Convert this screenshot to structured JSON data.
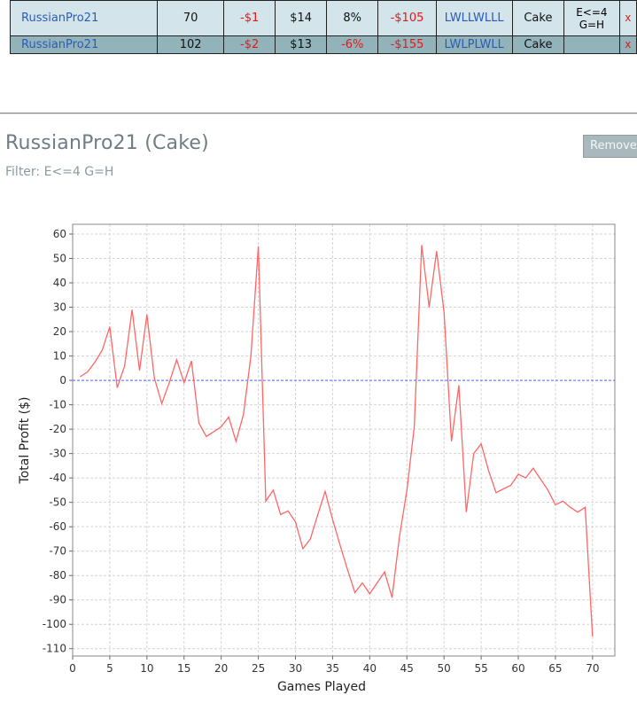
{
  "table": {
    "rows": [
      {
        "player": "RussianPro21",
        "games": "70",
        "profit": "-$1",
        "buyin": "$14",
        "roi": "8%",
        "total": "-$105",
        "streak": "LWLLWLLL",
        "site": "Cake",
        "filter_line1": "E<=4",
        "filter_line2": "G=H",
        "action": "x"
      },
      {
        "player": "RussianPro21",
        "games": "102",
        "profit": "-$2",
        "buyin": "$13",
        "roi": "-6%",
        "total": "-$155",
        "streak": "LWLPLWLL",
        "site": "Cake",
        "filter_line1": "",
        "filter_line2": "",
        "action": "x"
      }
    ]
  },
  "panel": {
    "title": "RussianPro21 (Cake)",
    "filter": "Filter: E<=4 G=H",
    "remove_label": "Remove"
  },
  "chart_data": {
    "type": "line",
    "xlabel": "Games Played",
    "ylabel": "Total Profit ($)",
    "xlim": [
      0,
      73
    ],
    "ylim": [
      -113,
      64
    ],
    "xticks": [
      0,
      5,
      10,
      15,
      20,
      25,
      30,
      35,
      40,
      45,
      50,
      55,
      60,
      65,
      70
    ],
    "yticks": [
      60,
      50,
      40,
      30,
      20,
      10,
      0,
      -10,
      -20,
      -30,
      -40,
      -50,
      -60,
      -70,
      -80,
      -90,
      -100,
      -110
    ],
    "grid": true,
    "baseline": 0,
    "line_color": "#ff6666",
    "baseline_color": "#5566ff",
    "series": [
      {
        "x": [
          1,
          2,
          3,
          4,
          5,
          6,
          7,
          8,
          9,
          10,
          11,
          12,
          13,
          14,
          15,
          16,
          17,
          18,
          19,
          20,
          21,
          22,
          23,
          24,
          25,
          26,
          27,
          28,
          29,
          30,
          31,
          32,
          33,
          34,
          35,
          36,
          37,
          38,
          39,
          40,
          41,
          42,
          43,
          44,
          45,
          46,
          47,
          48,
          49,
          50,
          51,
          52,
          53,
          54,
          55,
          56,
          57,
          58,
          59,
          60,
          61,
          62,
          63,
          64,
          65,
          66,
          67,
          68,
          69,
          70
        ],
        "y": [
          1.5,
          3.5,
          7.5,
          12.5,
          22,
          -3,
          6,
          29,
          4,
          27,
          1,
          -9.5,
          -1,
          8.5,
          -1,
          8,
          -17.5,
          -23,
          -21,
          -19,
          -15,
          -25,
          -14,
          10,
          55,
          -49.5,
          -45,
          -55,
          -53.5,
          -58,
          -69,
          -65,
          -55,
          -45.5,
          -57,
          -67.5,
          -77.5,
          -87,
          -83,
          -87.5,
          -83,
          -78.5,
          -89,
          -64,
          -45,
          -19,
          55.5,
          30,
          53,
          28,
          -25,
          -2,
          -54,
          -30,
          -26,
          -37,
          -46,
          -44.5,
          -43,
          -38.5,
          -40,
          -36,
          -40.5,
          -45,
          -51,
          -49.5,
          -52,
          -54,
          -52,
          -105
        ]
      }
    ]
  }
}
